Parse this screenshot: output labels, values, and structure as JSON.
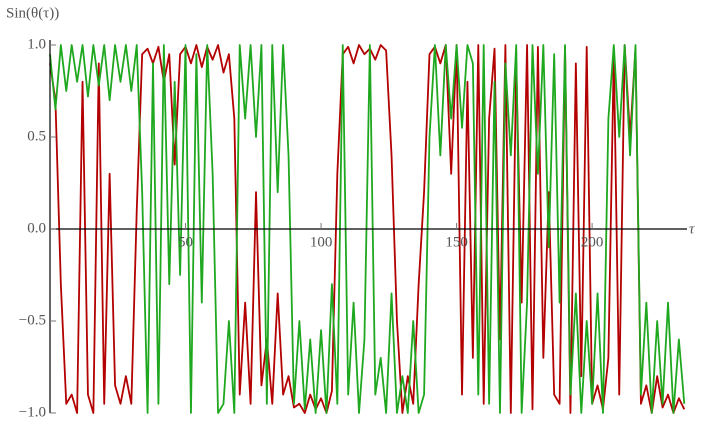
{
  "chart_data": {
    "type": "line",
    "y_label": "Sin(θ(τ))",
    "x_label": "τ",
    "x": [
      0,
      2,
      4,
      6,
      8,
      10,
      12,
      14,
      16,
      18,
      20,
      22,
      24,
      26,
      28,
      30,
      32,
      34,
      36,
      38,
      40,
      42,
      44,
      46,
      48,
      50,
      52,
      54,
      56,
      58,
      60,
      62,
      64,
      66,
      68,
      70,
      72,
      74,
      76,
      78,
      80,
      82,
      84,
      86,
      88,
      90,
      92,
      94,
      96,
      98,
      100,
      102,
      104,
      106,
      108,
      110,
      112,
      114,
      116,
      118,
      120,
      122,
      124,
      126,
      128,
      130,
      132,
      134,
      136,
      138,
      140,
      142,
      144,
      146,
      148,
      150,
      152,
      154,
      156,
      158,
      160,
      162,
      164,
      166,
      168,
      170,
      172,
      174,
      176,
      178,
      180,
      182,
      184,
      186,
      188,
      190,
      192,
      194,
      196,
      198,
      200,
      202,
      204,
      206,
      208,
      210,
      212,
      214,
      216,
      218,
      220,
      222,
      224,
      226,
      228,
      230,
      232,
      234
    ],
    "series": [
      {
        "color": "#b30000",
        "values": [
          0.9,
          0.7,
          -0.3,
          -0.95,
          -0.9,
          -1,
          0.8,
          -0.9,
          -1,
          0.9,
          -0.95,
          0.3,
          -0.85,
          -0.95,
          -0.8,
          -0.95,
          0.1,
          0.95,
          0.98,
          0.9,
          0.99,
          0.8,
          0.95,
          0.35,
          0.95,
          0.99,
          0.9,
          1,
          0.88,
          0.99,
          0.92,
          1,
          0.85,
          0.95,
          0.6,
          -0.9,
          -0.4,
          -0.95,
          0.2,
          -0.85,
          -0.6,
          -0.95,
          -0.35,
          -0.9,
          -0.8,
          -0.97,
          -0.95,
          -1,
          -0.9,
          -0.98,
          -0.92,
          -1,
          -0.88,
          0.3,
          0.95,
          0.99,
          0.9,
          1,
          0.95,
          0.98,
          0.92,
          1,
          0.97,
          0.4,
          -0.5,
          -1,
          -0.8,
          -0.95,
          -0.3,
          0.2,
          0.95,
          0.99,
          0.9,
          1,
          0.3,
          1,
          -0.9,
          0.8,
          -0.7,
          1,
          -0.95,
          0.6,
          0.98,
          -0.6,
          1,
          -1,
          0.9,
          -0.4,
          1,
          -0.98,
          0.99,
          -0.7,
          0.2,
          -0.9,
          -0.95,
          0.99,
          -1,
          0.9,
          -0.8,
          0.99,
          -0.95,
          -0.85,
          -0.98,
          -0.7,
          0.95,
          -0.9,
          1,
          0.5,
          0.98,
          -0.95,
          -0.85,
          -1,
          -0.8,
          -0.97,
          -0.9,
          -1,
          -0.92,
          -0.98
        ]
      },
      {
        "color": "#1fa81f",
        "values": [
          0.95,
          0.65,
          1,
          0.75,
          1,
          0.8,
          1,
          0.72,
          1,
          0.78,
          1,
          0.7,
          1,
          0.8,
          1,
          0.75,
          1,
          0.2,
          -1,
          0.9,
          -0.95,
          1,
          -0.3,
          0.8,
          -0.25,
          1,
          -1,
          0.95,
          -0.4,
          1,
          0.3,
          -1,
          -0.95,
          -0.5,
          -1,
          1,
          0.6,
          1,
          0.5,
          1,
          -0.95,
          1,
          0.2,
          1,
          0.4,
          -0.95,
          -0.5,
          -0.98,
          -0.6,
          -1,
          -0.55,
          -1,
          -0.3,
          -0.95,
          1,
          -0.9,
          -0.4,
          -1,
          -0.6,
          1,
          -0.9,
          -0.7,
          -1,
          -0.35,
          -1,
          -0.8,
          -1,
          -0.5,
          -1,
          -0.9,
          0.5,
          1,
          0.4,
          1,
          0.6,
          1,
          0.55,
          1,
          0.9,
          -0.9,
          1,
          -0.95,
          0.8,
          -1,
          0.9,
          0.4,
          1,
          -1,
          -0.4,
          1,
          0.3,
          1,
          -0.1,
          0.95,
          -0.4,
          1,
          -0.9,
          -0.35,
          -1,
          -0.5,
          -0.95,
          -0.35,
          -1,
          0.6,
          1,
          0.5,
          1,
          0.4,
          1,
          -0.9,
          -0.4,
          -1,
          -0.5,
          -0.95,
          -0.4,
          -1,
          -0.6,
          -0.95
        ]
      }
    ],
    "xlim": [
      0,
      235
    ],
    "ylim": [
      -1,
      1
    ],
    "xticks": [
      50,
      100,
      150,
      200
    ],
    "yticks": [
      {
        "value": -1,
        "label": "−1.0"
      },
      {
        "value": -0.5,
        "label": "−0.5"
      },
      {
        "value": 0,
        "label": "0.0"
      },
      {
        "value": 0.5,
        "label": "0.5"
      },
      {
        "value": 1,
        "label": "1.0"
      }
    ]
  }
}
